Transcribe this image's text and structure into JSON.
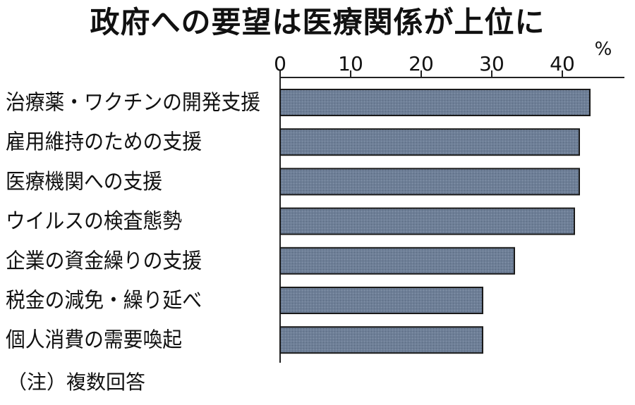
{
  "chart_data": {
    "type": "bar",
    "orientation": "horizontal",
    "title": "政府への要望は医療関係が上位に",
    "unit": "%",
    "categories": [
      "治療薬・ワクチンの開発支援",
      "雇用維持のための支援",
      "医療機関への支援",
      "ウイルスの検査態勢",
      "企業の資金繰りの支援",
      "税金の減免・繰り延べ",
      "個人消費の需要喚起"
    ],
    "values": [
      43.9,
      42.4,
      42.4,
      41.7,
      33.2,
      28.7,
      28.7
    ],
    "xlim": [
      0,
      48
    ],
    "x_ticks": [
      0,
      10,
      20,
      30,
      40
    ],
    "tick_labels": [
      "0",
      "10",
      "20",
      "30",
      "40"
    ],
    "axis_position": "top",
    "grid": false,
    "legend": "none",
    "bar_color": "#6e7f97",
    "bar_edge_color": "#1a1a1a"
  },
  "footnote": "（注）複数回答"
}
